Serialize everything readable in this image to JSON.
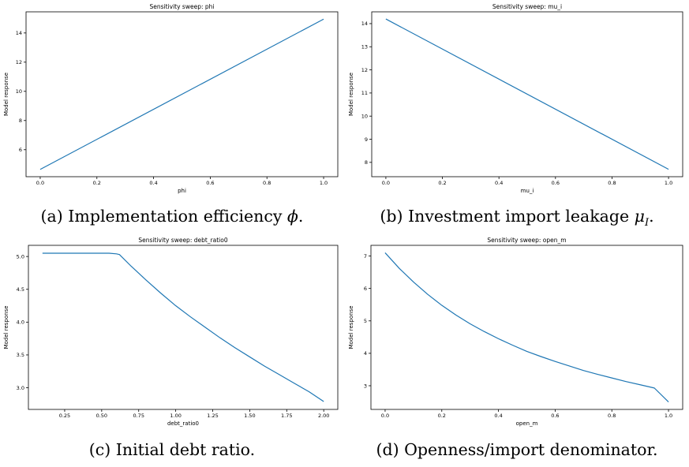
{
  "chart_data": [
    {
      "type": "line",
      "title": "Sensitivity sweep: phi",
      "xlabel": "phi",
      "ylabel": "Model response",
      "xlim": [
        -0.05,
        1.05
      ],
      "ylim": [
        4.15,
        15.45
      ],
      "xticks": [
        0.0,
        0.2,
        0.4,
        0.6,
        0.8,
        1.0
      ],
      "xtick_labels": [
        "0.0",
        "0.2",
        "0.4",
        "0.6",
        "0.8",
        "1.0"
      ],
      "yticks": [
        6,
        8,
        10,
        12,
        14
      ],
      "ytick_labels": [
        "6",
        "8",
        "10",
        "12",
        "14"
      ],
      "line_color": "#1f77b4",
      "series": [
        {
          "x": [
            0.0,
            1.0
          ],
          "y": [
            4.65,
            14.95
          ]
        }
      ],
      "caption_prefix": "(a) Implementation efficiency ",
      "caption_symbol": "ϕ",
      "caption_suffix": "."
    },
    {
      "type": "line",
      "title": "Sensitivity sweep: mu_i",
      "xlabel": "mu_i",
      "ylabel": "Model response",
      "xlim": [
        -0.05,
        1.05
      ],
      "ylim": [
        7.38,
        14.51
      ],
      "xticks": [
        0.0,
        0.2,
        0.4,
        0.6,
        0.8,
        1.0
      ],
      "xtick_labels": [
        "0.0",
        "0.2",
        "0.4",
        "0.6",
        "0.8",
        "1.0"
      ],
      "yticks": [
        8,
        9,
        10,
        11,
        12,
        13,
        14
      ],
      "ytick_labels": [
        "8",
        "9",
        "10",
        "11",
        "12",
        "13",
        "14"
      ],
      "line_color": "#1f77b4",
      "series": [
        {
          "x": [
            0.0,
            1.0
          ],
          "y": [
            14.2,
            7.7
          ]
        }
      ],
      "caption_prefix": "(b) Investment import leakage ",
      "caption_symbol": "μ",
      "caption_sub": "I",
      "caption_suffix": "."
    },
    {
      "type": "line",
      "title": "Sensitivity sweep: debt_ratio0",
      "xlabel": "debt_ratio0",
      "ylabel": "Model response",
      "xlim": [
        0.005,
        2.095
      ],
      "ylim": [
        2.67,
        5.17
      ],
      "xticks": [
        0.25,
        0.5,
        0.75,
        1.0,
        1.25,
        1.5,
        1.75,
        2.0
      ],
      "xtick_labels": [
        "0.25",
        "0.50",
        "0.75",
        "1.00",
        "1.25",
        "1.50",
        "1.75",
        "2.00"
      ],
      "yticks": [
        3.0,
        3.5,
        4.0,
        4.5,
        5.0
      ],
      "ytick_labels": [
        "3.0",
        "3.5",
        "4.0",
        "4.5",
        "5.0"
      ],
      "line_color": "#1f77b4",
      "series": [
        {
          "x": [
            0.1,
            0.2,
            0.3,
            0.4,
            0.5,
            0.55,
            0.6,
            0.62,
            0.7,
            0.8,
            0.9,
            1.0,
            1.1,
            1.2,
            1.3,
            1.4,
            1.5,
            1.6,
            1.7,
            1.8,
            1.9,
            2.0
          ],
          "y": [
            5.05,
            5.05,
            5.05,
            5.05,
            5.05,
            5.05,
            5.04,
            5.03,
            4.85,
            4.64,
            4.44,
            4.25,
            4.08,
            3.92,
            3.76,
            3.61,
            3.47,
            3.33,
            3.2,
            3.07,
            2.94,
            2.79
          ]
        }
      ],
      "caption_prefix": "(c) Initial debt ratio.",
      "caption_symbol": "",
      "caption_suffix": ""
    },
    {
      "type": "line",
      "title": "Sensitivity sweep: open_m",
      "xlabel": "open_m",
      "ylabel": "Model response",
      "xlim": [
        -0.05,
        1.05
      ],
      "ylim": [
        2.27,
        7.33
      ],
      "xticks": [
        0.0,
        0.2,
        0.4,
        0.6,
        0.8,
        1.0
      ],
      "xtick_labels": [
        "0.0",
        "0.2",
        "0.4",
        "0.6",
        "0.8",
        "1.0"
      ],
      "yticks": [
        3,
        4,
        5,
        6,
        7
      ],
      "ytick_labels": [
        "3",
        "4",
        "5",
        "6",
        "7"
      ],
      "line_color": "#1f77b4",
      "series": [
        {
          "x": [
            0.0,
            0.05,
            0.1,
            0.15,
            0.2,
            0.25,
            0.3,
            0.35,
            0.4,
            0.45,
            0.5,
            0.55,
            0.6,
            0.65,
            0.7,
            0.75,
            0.8,
            0.85,
            0.9,
            0.95,
            1.0
          ],
          "y": [
            7.1,
            6.62,
            6.2,
            5.82,
            5.48,
            5.18,
            4.91,
            4.67,
            4.45,
            4.25,
            4.06,
            3.9,
            3.75,
            3.61,
            3.47,
            3.35,
            3.24,
            3.13,
            3.03,
            2.93,
            2.5
          ]
        }
      ],
      "caption_prefix": "(d) Openness/import denominator.",
      "caption_symbol": "",
      "caption_suffix": ""
    }
  ]
}
